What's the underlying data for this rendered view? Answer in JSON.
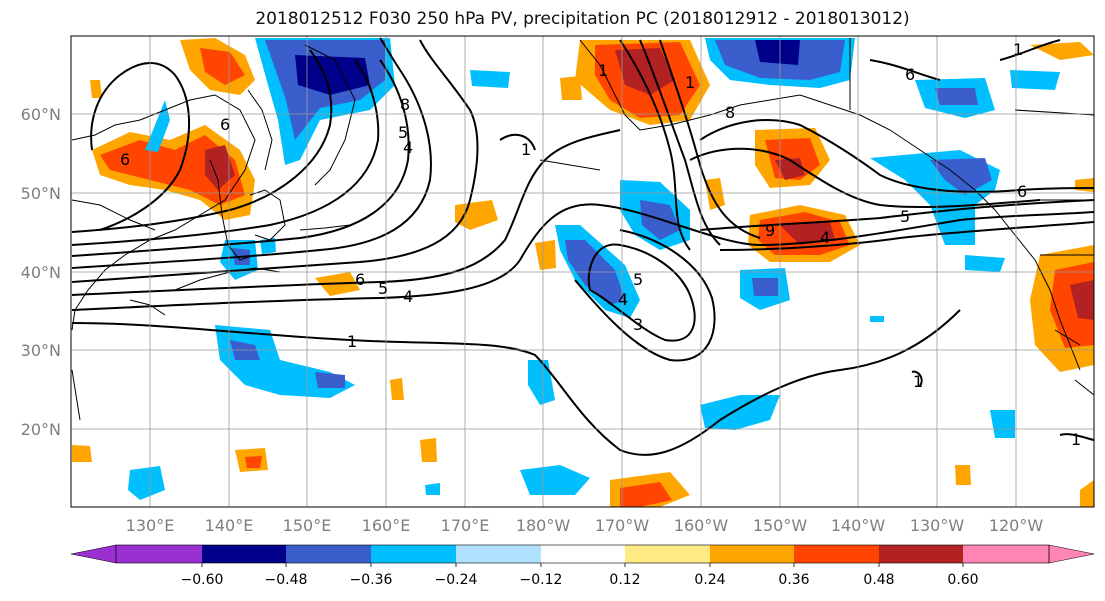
{
  "title": "2018012512 F030 250 hPa PV, precipitation PC (2018012912 - 2018013012)",
  "map": {
    "lon_labels": [
      "130°E",
      "140°E",
      "150°E",
      "160°E",
      "170°E",
      "180°W",
      "170°W",
      "160°W",
      "150°W",
      "140°W",
      "130°W",
      "120°W"
    ],
    "lat_labels": [
      "60°N",
      "50°N",
      "40°N",
      "30°N",
      "20°N"
    ],
    "contour_labels": [
      "6",
      "6",
      "8",
      "5",
      "4",
      "6",
      "5",
      "4",
      "1",
      "1",
      "1",
      "1",
      "1",
      "5",
      "4",
      "3",
      "5",
      "4",
      "9",
      "8",
      "6",
      "6",
      "1",
      "1"
    ]
  },
  "colorbar": {
    "ticks": [
      "−0.60",
      "−0.48",
      "−0.36",
      "−0.24",
      "−0.12",
      "0.12",
      "0.24",
      "0.36",
      "0.48",
      "0.60"
    ],
    "colors": [
      "#9b30d0",
      "#00008b",
      "#3a5fcd",
      "#00bfff",
      "#b0e2ff",
      "#ffffff",
      "#ffea84",
      "#ffa500",
      "#ff4500",
      "#b22222",
      "#ff85b5"
    ]
  }
}
